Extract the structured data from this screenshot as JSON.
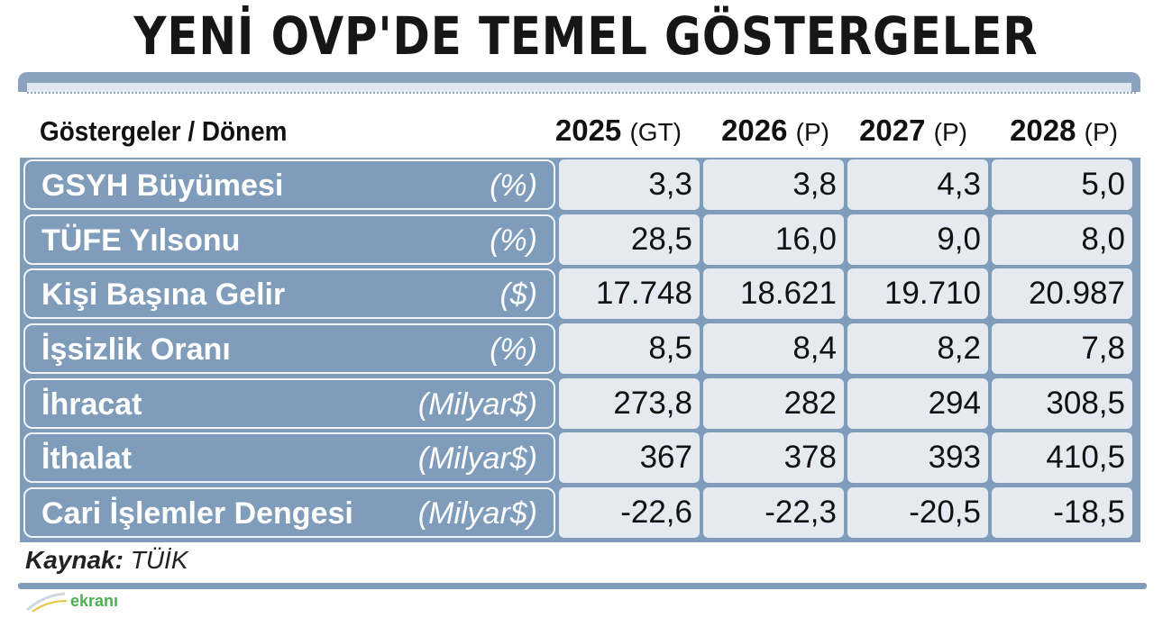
{
  "title": "YENİ OVP'DE TEMEL GÖSTERGELER",
  "colors": {
    "header_bar": "#8aa2bd",
    "label_bg": "#7f9cbb",
    "value_bg": "#e5eaf1",
    "title_text": "#161616"
  },
  "chart_data": {
    "type": "table",
    "title": "YENİ OVP'DE TEMEL GÖSTERGELER",
    "header_label": "Göstergeler / Dönem",
    "columns": [
      {
        "year": "2025",
        "suffix": "(GT)"
      },
      {
        "year": "2026",
        "suffix": "(P)"
      },
      {
        "year": "2027",
        "suffix": "(P)"
      },
      {
        "year": "2028",
        "suffix": "(P)"
      }
    ],
    "rows": [
      {
        "label": "GSYH Büyümesi",
        "unit": "(%)",
        "values": [
          "3,3",
          "3,8",
          "4,3",
          "5,0"
        ]
      },
      {
        "label": "TÜFE Yılsonu",
        "unit": "(%)",
        "values": [
          "28,5",
          "16,0",
          "9,0",
          "8,0"
        ]
      },
      {
        "label": "Kişi Başına Gelir",
        "unit": "($)",
        "values": [
          "17.748",
          "18.621",
          "19.710",
          "20.987"
        ]
      },
      {
        "label": "İşsizlik Oranı",
        "unit": "(%)",
        "values": [
          "8,5",
          "8,4",
          "8,2",
          "7,8"
        ]
      },
      {
        "label": "İhracat",
        "unit": "(Milyar$)",
        "values": [
          "273,8",
          "282",
          "294",
          "308,5"
        ]
      },
      {
        "label": "İthalat",
        "unit": "(Milyar$)",
        "values": [
          "367",
          "378",
          "393",
          "410,5"
        ]
      },
      {
        "label": "Cari İşlemler Dengesi",
        "unit": "(Milyar$)",
        "values": [
          "-22,6",
          "-22,3",
          "-20,5",
          "-18,5"
        ]
      }
    ]
  },
  "source": {
    "label": "Kaynak:",
    "value": "TÜİK"
  },
  "logo": {
    "text": "ekranı"
  }
}
